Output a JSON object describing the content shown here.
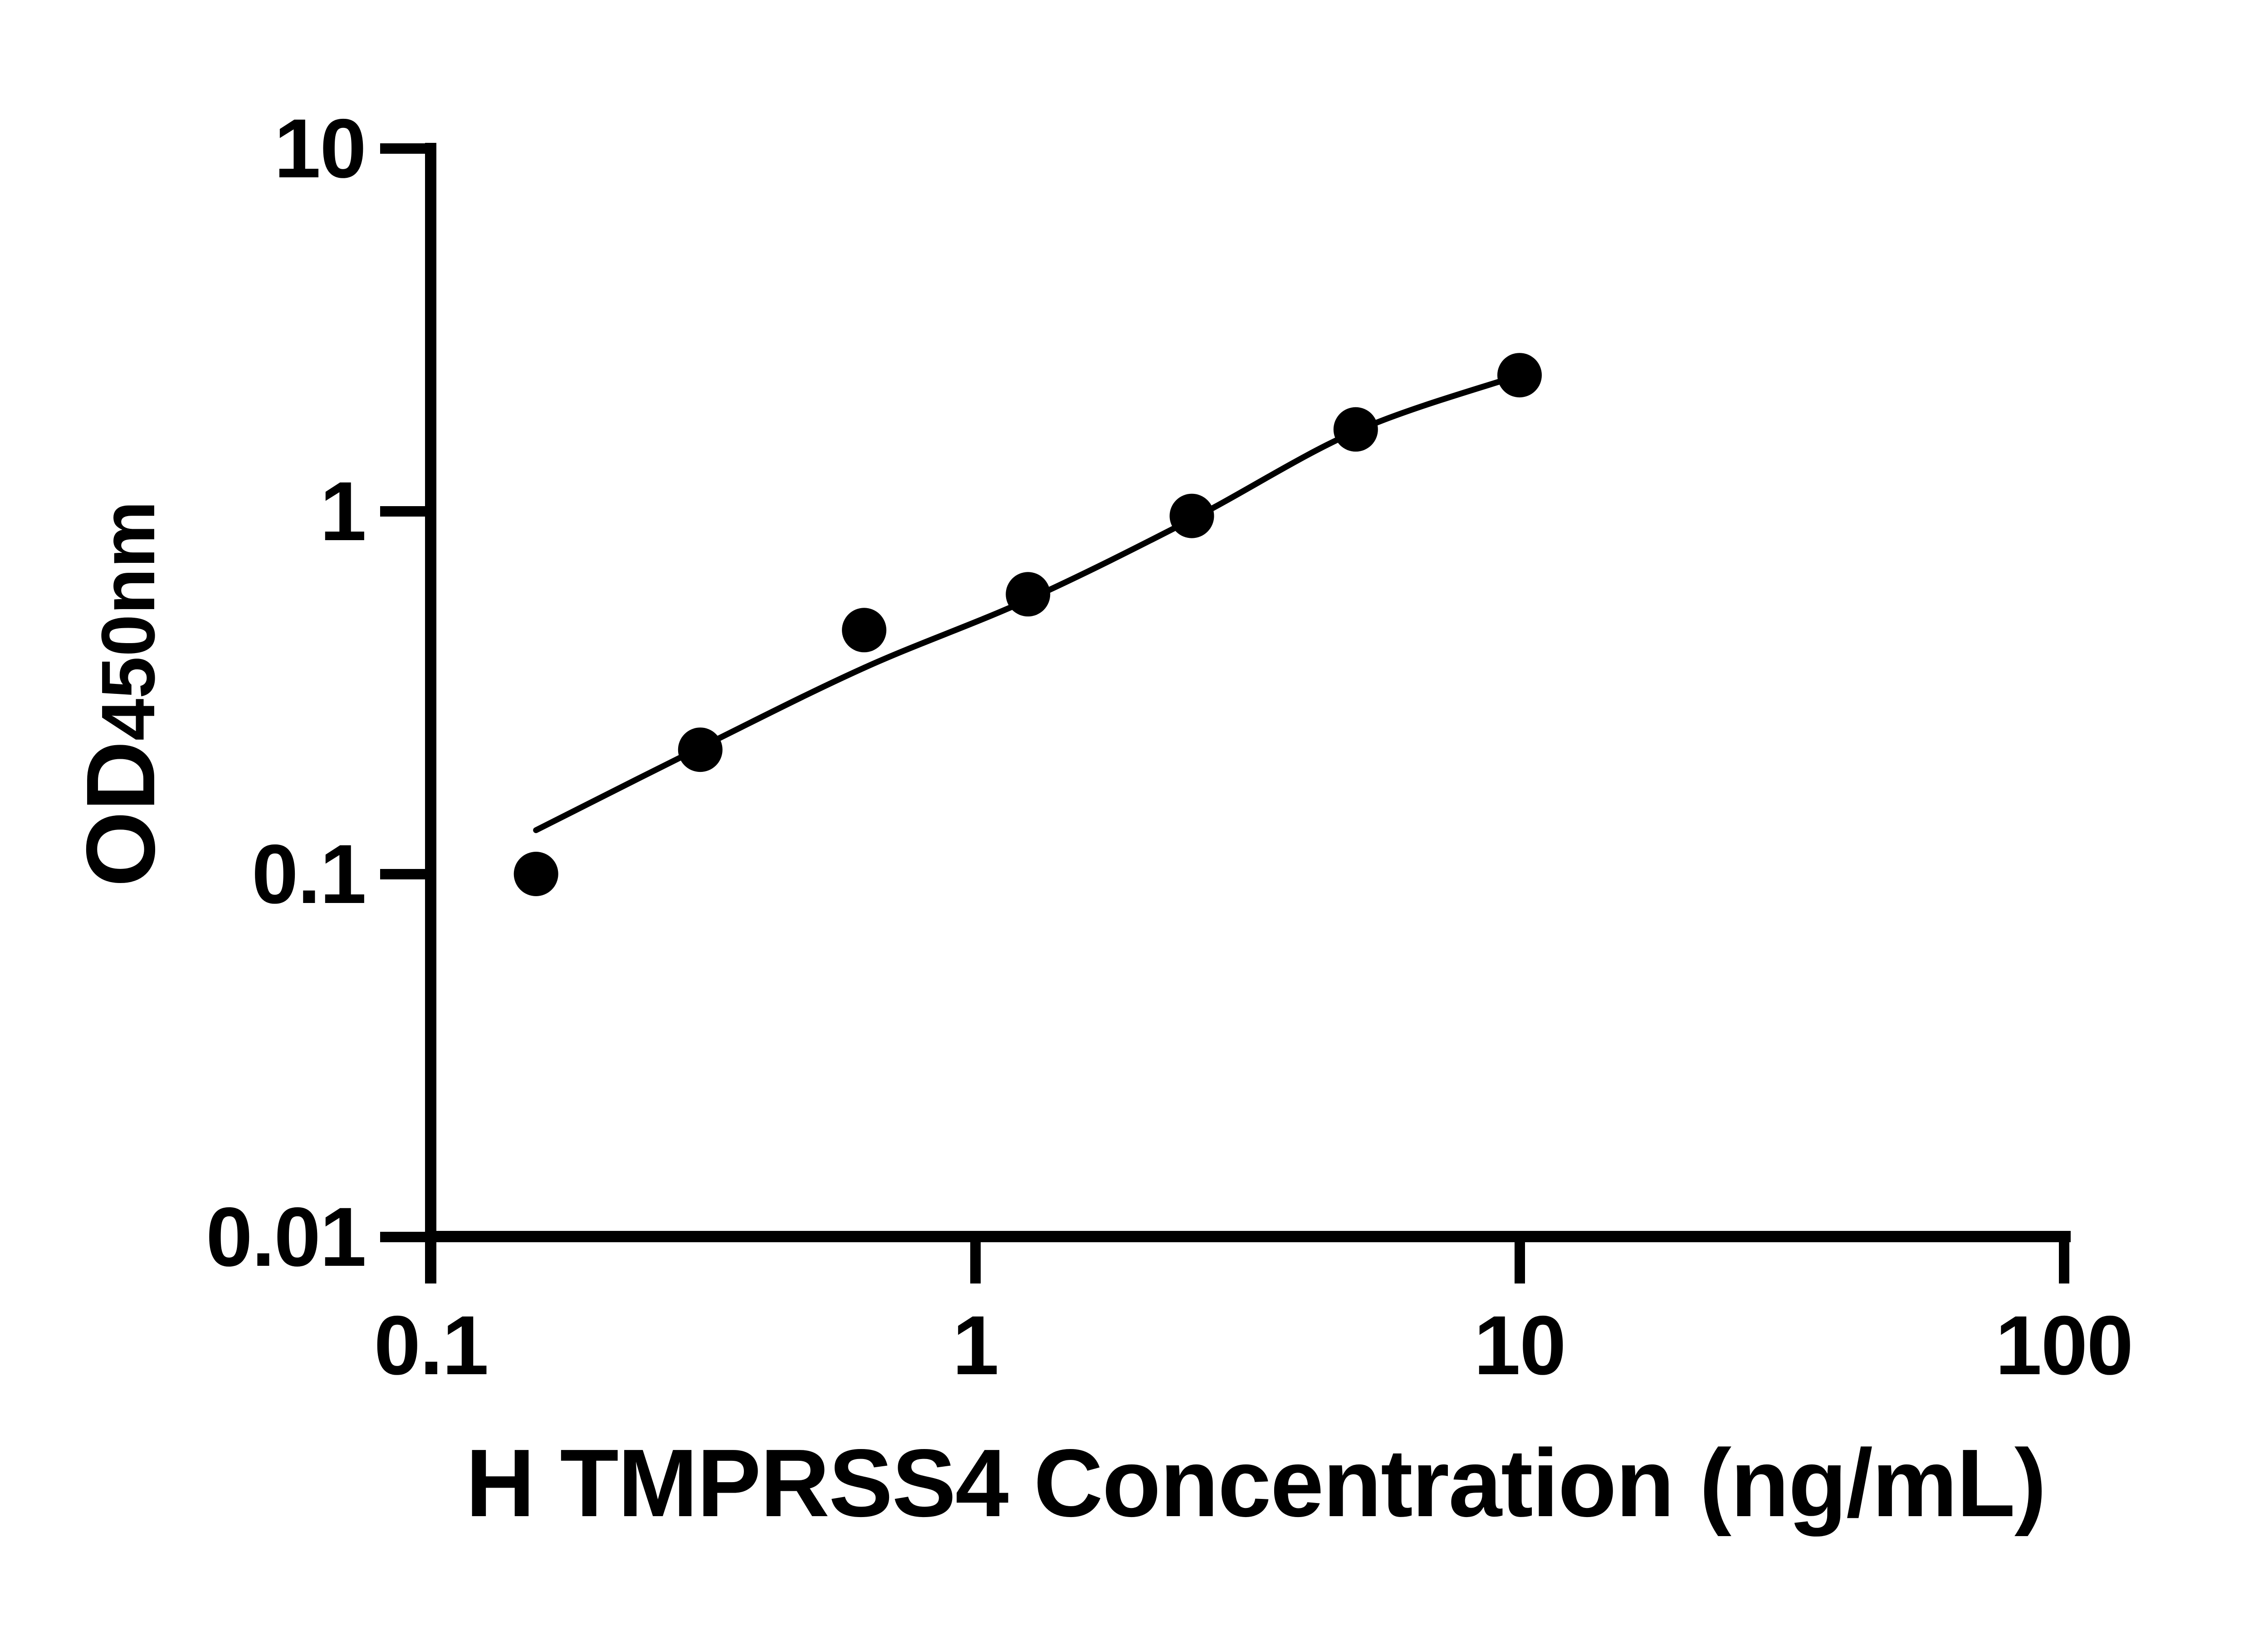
{
  "figure": {
    "background_color": "#ffffff",
    "foreground_color": "#000000"
  },
  "chart_data": {
    "type": "scatter",
    "title": "",
    "xlabel": "H TMPRSS4 Concentration (ng/mL)",
    "ylabel": "OD450nm",
    "ylabel_main": "OD",
    "ylabel_subscript": "450nm",
    "x_scale": "log",
    "y_scale": "log",
    "xlim": [
      0.1,
      100
    ],
    "ylim": [
      0.01,
      10
    ],
    "x_ticks": [
      0.1,
      1,
      10,
      100
    ],
    "x_tick_labels": [
      "0.1",
      "1",
      "10",
      "100"
    ],
    "y_ticks": [
      10,
      1,
      0.1,
      0.01
    ],
    "y_tick_labels": [
      "10",
      "1",
      "0.1",
      "0.01"
    ],
    "grid": false,
    "legend": false,
    "marker": {
      "shape": "filled-circle",
      "color": "#000000"
    },
    "series": [
      {
        "name": "standard-curve-points",
        "type": "scatter",
        "color": "#000000",
        "points": [
          {
            "x": 0.156,
            "y": 0.1
          },
          {
            "x": 0.3125,
            "y": 0.22
          },
          {
            "x": 0.625,
            "y": 0.47
          },
          {
            "x": 1.25,
            "y": 0.59
          },
          {
            "x": 2.5,
            "y": 0.97
          },
          {
            "x": 5,
            "y": 1.68
          },
          {
            "x": 10,
            "y": 2.37
          }
        ]
      },
      {
        "name": "fit-curve",
        "type": "line",
        "color": "#000000",
        "points": [
          {
            "x": 0.156,
            "y": 0.132
          },
          {
            "x": 0.3125,
            "y": 0.223
          },
          {
            "x": 0.625,
            "y": 0.37
          },
          {
            "x": 1.25,
            "y": 0.57
          },
          {
            "x": 2.5,
            "y": 0.95
          },
          {
            "x": 5,
            "y": 1.66
          },
          {
            "x": 10,
            "y": 2.37
          }
        ]
      }
    ]
  }
}
